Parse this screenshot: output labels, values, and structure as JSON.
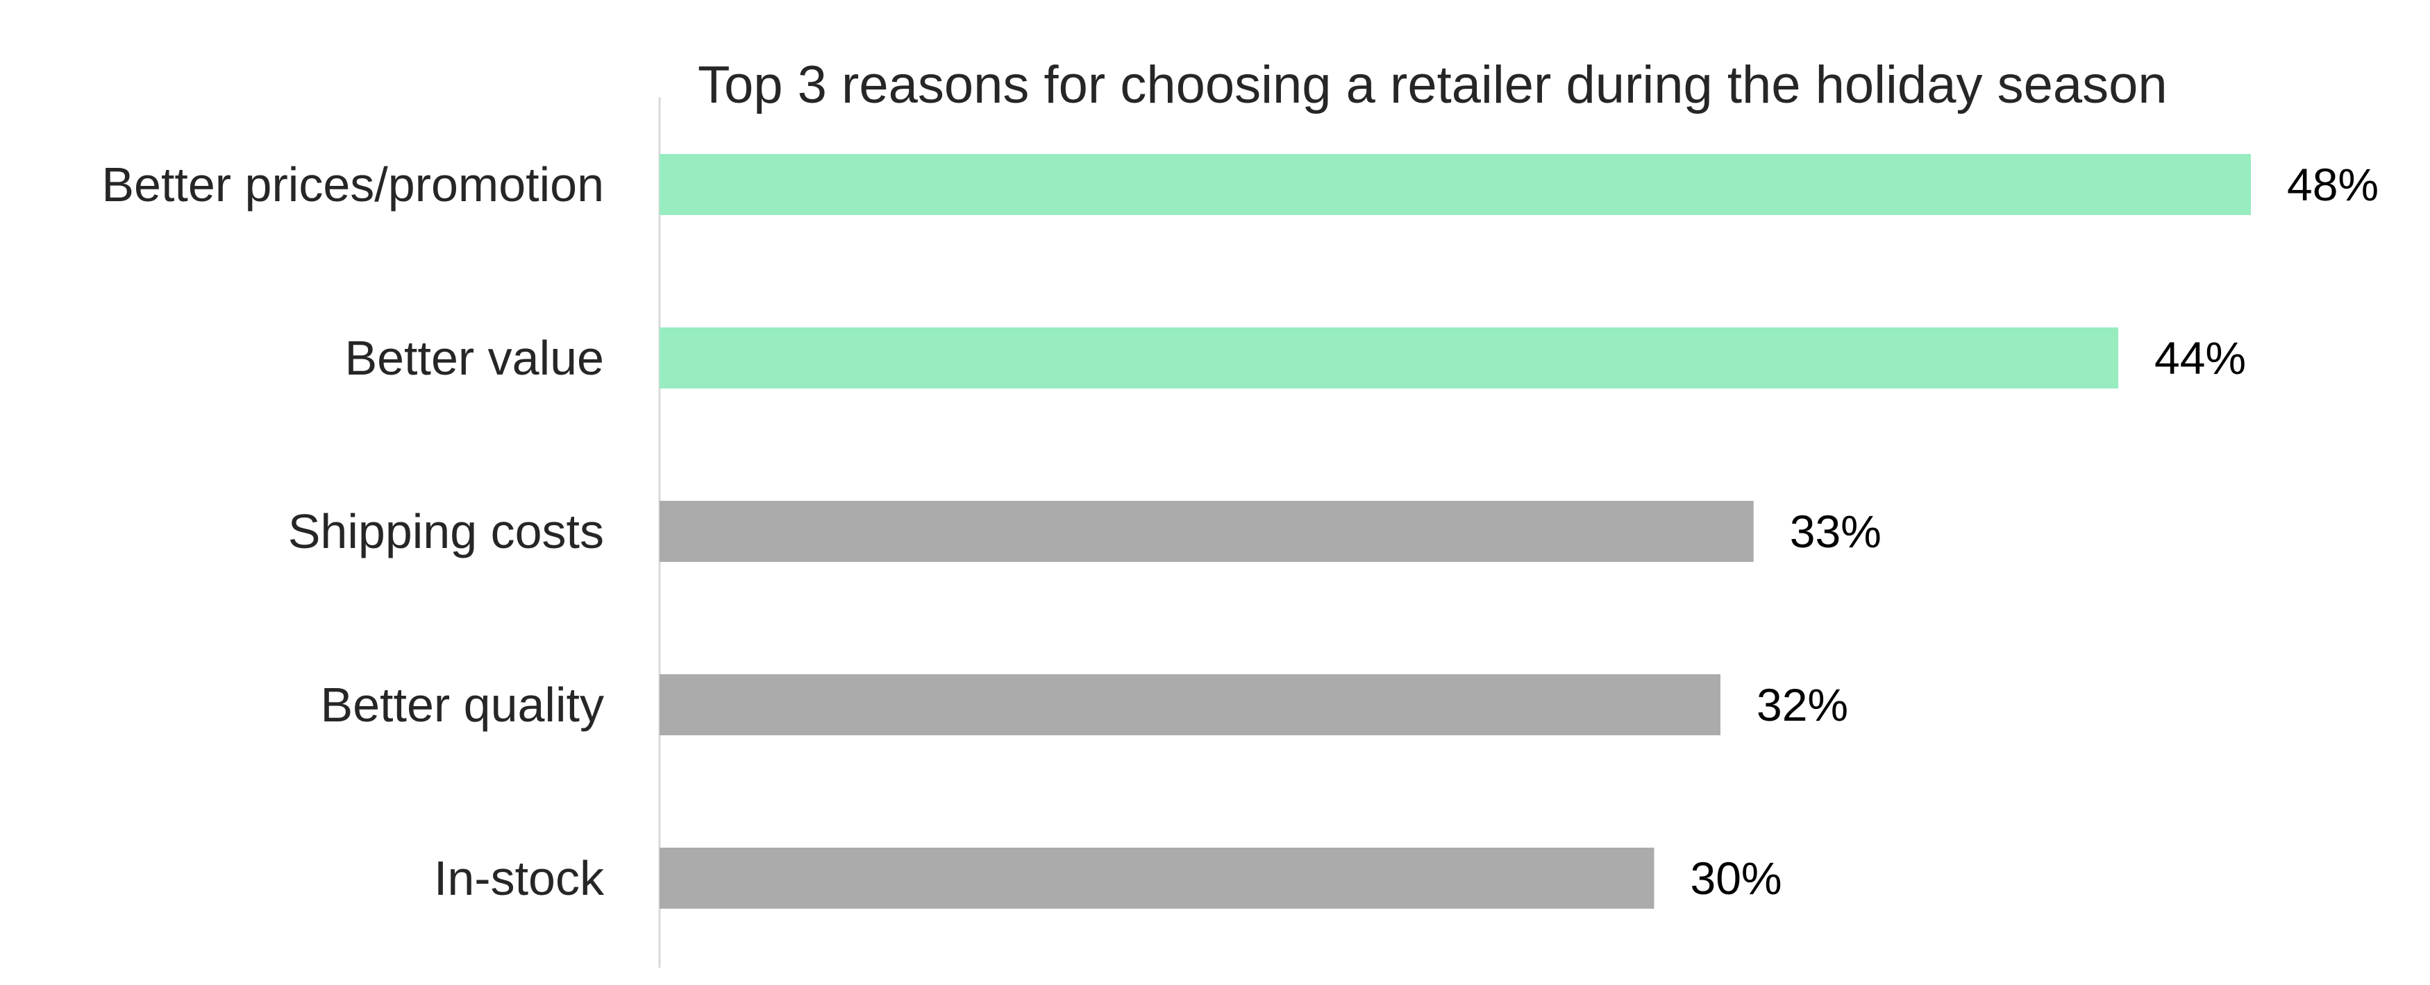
{
  "chart_data": {
    "type": "bar",
    "orientation": "horizontal",
    "title": "Top 3 reasons for choosing a retailer during the holiday season",
    "xlabel": "",
    "ylabel": "",
    "categories": [
      "Better prices/promotion",
      "Better value",
      "Shipping costs",
      "Better quality",
      "In-stock"
    ],
    "values": [
      48,
      44,
      33,
      32,
      30
    ],
    "value_labels": [
      "48%",
      "44%",
      "33%",
      "32%",
      "30%"
    ],
    "xlim": [
      0,
      48
    ],
    "grid": false,
    "legend": "none",
    "bar_colors": [
      "#97ecc0",
      "#97ecc0",
      "#acabab",
      "#acabab",
      "#acabab"
    ]
  },
  "colors": {
    "highlight": "#97ecc0",
    "neutral": "#acabab",
    "axis": "#d9d9d9",
    "text": "#262626"
  }
}
